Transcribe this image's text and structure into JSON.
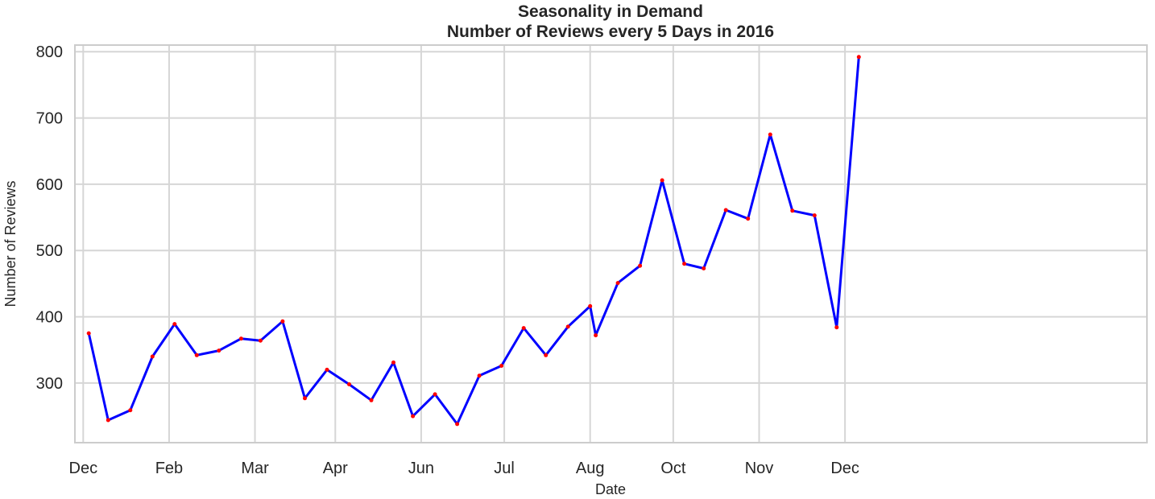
{
  "chart_data": {
    "type": "line",
    "title": "Seasonality in Demand",
    "subtitle": "Number of Reviews every 5 Days in 2016",
    "xlabel": "Date",
    "ylabel": "Number of Reviews",
    "ylim": [
      210,
      810
    ],
    "xlim": [
      "2015-11-28",
      "2016-12-19"
    ],
    "x_tick_labels": [
      {
        "label": "Dec",
        "date": "2015-12-01"
      },
      {
        "label": "Feb",
        "date": "2016-01-01"
      },
      {
        "label": "Mar",
        "date": "2016-02-01"
      },
      {
        "label": "Apr",
        "date": "2016-03-01"
      },
      {
        "label": "Jun",
        "date": "2016-04-01"
      },
      {
        "label": "Jul",
        "date": "2016-05-01"
      },
      {
        "label": "Aug",
        "date": "2016-06-01"
      },
      {
        "label": "Oct",
        "date": "2016-07-01"
      },
      {
        "label": "Nov",
        "date": "2016-08-01"
      },
      {
        "label": "Dec",
        "date": "2016-09-01"
      }
    ],
    "y_ticks": [
      300,
      400,
      500,
      600,
      700,
      800
    ],
    "grid": true,
    "series": [
      {
        "line_color": "#0000ff",
        "marker_color": "#ff0000",
        "points": [
          {
            "x": "2015-12-03",
            "y": 375
          },
          {
            "x": "2015-12-10",
            "y": 244
          },
          {
            "x": "2015-12-18",
            "y": 259
          },
          {
            "x": "2015-12-26",
            "y": 340
          },
          {
            "x": "2016-01-03",
            "y": 389
          },
          {
            "x": "2016-01-11",
            "y": 342
          },
          {
            "x": "2016-01-19",
            "y": 349
          },
          {
            "x": "2016-01-27",
            "y": 367
          },
          {
            "x": "2016-02-03",
            "y": 364
          },
          {
            "x": "2016-02-11",
            "y": 393
          },
          {
            "x": "2016-02-19",
            "y": 277
          },
          {
            "x": "2016-02-27",
            "y": 320
          },
          {
            "x": "2016-03-06",
            "y": 298
          },
          {
            "x": "2016-03-14",
            "y": 274
          },
          {
            "x": "2016-03-22",
            "y": 331
          },
          {
            "x": "2016-03-29",
            "y": 250
          },
          {
            "x": "2016-04-06",
            "y": 283
          },
          {
            "x": "2016-04-14",
            "y": 238
          },
          {
            "x": "2016-04-22",
            "y": 311
          },
          {
            "x": "2016-04-30",
            "y": 326
          },
          {
            "x": "2016-05-08",
            "y": 383
          },
          {
            "x": "2016-05-16",
            "y": 342
          },
          {
            "x": "2016-05-24",
            "y": 385
          },
          {
            "x": "2016-06-01",
            "y": 416
          },
          {
            "x": "2016-06-03",
            "y": 372
          },
          {
            "x": "2016-06-11",
            "y": 451
          },
          {
            "x": "2016-06-19",
            "y": 477
          },
          {
            "x": "2016-06-27",
            "y": 606
          },
          {
            "x": "2016-07-05",
            "y": 480
          },
          {
            "x": "2016-07-12",
            "y": 473
          },
          {
            "x": "2016-07-20",
            "y": 561
          },
          {
            "x": "2016-07-28",
            "y": 548
          },
          {
            "x": "2016-08-05",
            "y": 675
          },
          {
            "x": "2016-08-13",
            "y": 560
          },
          {
            "x": "2016-08-21",
            "y": 553
          },
          {
            "x": "2016-08-29",
            "y": 384
          },
          {
            "x": "2016-09-06",
            "y": 792
          }
        ]
      }
    ]
  }
}
